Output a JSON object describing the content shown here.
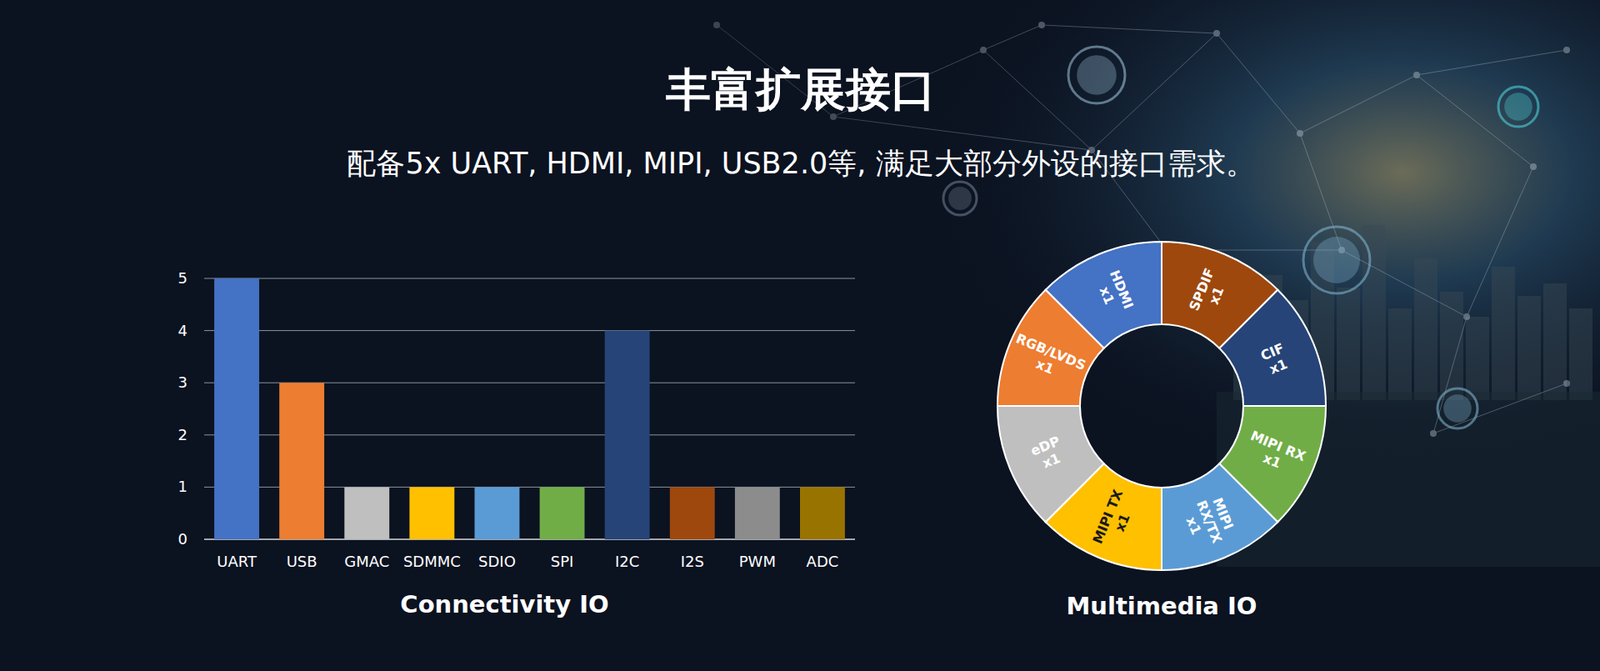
{
  "header": {
    "title": "丰富扩展接口",
    "subtitle": "配备5x UART, HDMI, MIPI, USB2.0等, 满足大部分外设的接口需求。"
  },
  "chart_data": [
    {
      "type": "bar",
      "title": "Connectivity IO",
      "categories": [
        "UART",
        "USB",
        "GMAC",
        "SDMMC",
        "SDIO",
        "SPI",
        "I2C",
        "I2S",
        "PWM",
        "ADC"
      ],
      "values": [
        5,
        3,
        1,
        1,
        1,
        1,
        4,
        1,
        1,
        1
      ],
      "colors": [
        "#4472c4",
        "#ed7d31",
        "#bfbfbf",
        "#ffc000",
        "#5b9bd5",
        "#70ad47",
        "#264478",
        "#9e480e",
        "#8c8c8c",
        "#997300"
      ],
      "ylim": [
        0,
        5
      ],
      "yticks": [
        0,
        1,
        2,
        3,
        4,
        5
      ],
      "grid": true
    },
    {
      "type": "donut",
      "title": "Multimedia IO",
      "categories": [
        "HDMI",
        "SPDIF",
        "CIF",
        "MIPI RX",
        "MIPI RX/TX",
        "MIPI TX",
        "eDP",
        "RGB/LVDS"
      ],
      "values": [
        1,
        1,
        1,
        1,
        1,
        1,
        1,
        1
      ],
      "value_labels": [
        "x1",
        "x1",
        "x1",
        "x1",
        "x1",
        "x1",
        "x1",
        "x1"
      ],
      "colors": [
        "#4472c4",
        "#9e480e",
        "#264478",
        "#70ad47",
        "#5b9bd5",
        "#ffc000",
        "#bfbfbf",
        "#ed7d31"
      ],
      "data_labels": true
    }
  ]
}
